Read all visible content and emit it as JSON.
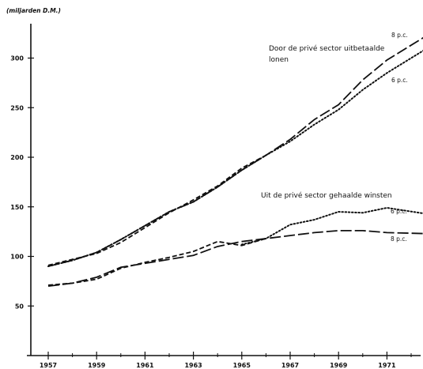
{
  "chart_data": {
    "type": "line",
    "unit_label": "(miljarden D.M.)",
    "x_ticks": [
      1957,
      1959,
      1961,
      1963,
      1965,
      1967,
      1969,
      1971
    ],
    "y_ticks": [
      50,
      100,
      150,
      200,
      250,
      300
    ],
    "xlim": [
      1957,
      1972.6
    ],
    "ylim": [
      0,
      335
    ],
    "grid": false,
    "annotations": [
      {
        "id": "wages_title_1",
        "text": "Door de privé sector uitbetaalde"
      },
      {
        "id": "wages_title_2",
        "text": "lonen"
      },
      {
        "id": "wages_8",
        "text": "8 p.c."
      },
      {
        "id": "wages_6",
        "text": "6 p.c."
      },
      {
        "id": "profits_title",
        "text": "Uit de privé sector gehaalde winsten"
      },
      {
        "id": "profits_6",
        "text": "6 p.c."
      },
      {
        "id": "profits_8",
        "text": "8 p.c."
      }
    ],
    "series": [
      {
        "group": "wages",
        "rate": "8 p.c.",
        "style": "longdash",
        "color": "#111111",
        "points": [
          [
            1957,
            90
          ],
          [
            1958,
            96
          ],
          [
            1959,
            104
          ],
          [
            1960,
            117
          ],
          [
            1961,
            131
          ],
          [
            1962,
            145
          ],
          [
            1963,
            155
          ],
          [
            1964,
            170
          ],
          [
            1965,
            187
          ],
          [
            1966,
            202
          ],
          [
            1967,
            218
          ],
          [
            1968,
            238
          ],
          [
            1969,
            253
          ],
          [
            1970,
            278
          ],
          [
            1971,
            298
          ],
          [
            1972.6,
            322
          ]
        ]
      },
      {
        "group": "wages",
        "rate": "6 p.c.",
        "style": "dotted",
        "color": "#111111",
        "points": [
          [
            1957,
            90
          ],
          [
            1958,
            96
          ],
          [
            1959,
            104
          ],
          [
            1960,
            117
          ],
          [
            1961,
            131
          ],
          [
            1962,
            145
          ],
          [
            1963,
            155
          ],
          [
            1964,
            170
          ],
          [
            1965,
            187
          ],
          [
            1966,
            202
          ],
          [
            1967,
            216
          ],
          [
            1968,
            233
          ],
          [
            1969,
            248
          ],
          [
            1970,
            268
          ],
          [
            1971,
            285
          ],
          [
            1972.6,
            309
          ]
        ]
      },
      {
        "group": "wages",
        "rate": "",
        "style": "shortdash",
        "color": "#111111",
        "points": [
          [
            1957,
            91
          ],
          [
            1958,
            97
          ],
          [
            1959,
            103
          ],
          [
            1960,
            114
          ],
          [
            1961,
            129
          ],
          [
            1962,
            144
          ],
          [
            1963,
            157
          ],
          [
            1964,
            171
          ],
          [
            1965,
            189
          ],
          [
            1966,
            202
          ]
        ]
      },
      {
        "group": "profits",
        "rate": "8 p.c.",
        "style": "longdash",
        "color": "#111111",
        "points": [
          [
            1957,
            70
          ],
          [
            1958,
            73
          ],
          [
            1959,
            79
          ],
          [
            1960,
            89
          ],
          [
            1961,
            93
          ],
          [
            1962,
            97
          ],
          [
            1963,
            101
          ],
          [
            1964,
            110
          ],
          [
            1965,
            115
          ],
          [
            1966,
            118
          ],
          [
            1967,
            121
          ],
          [
            1968,
            124
          ],
          [
            1969,
            126
          ],
          [
            1970,
            126
          ],
          [
            1971,
            124
          ],
          [
            1972.6,
            123
          ]
        ]
      },
      {
        "group": "profits",
        "rate": "6 p.c.",
        "style": "dotted",
        "color": "#111111",
        "points": [
          [
            1965,
            112
          ],
          [
            1966,
            118
          ],
          [
            1967,
            132
          ],
          [
            1968,
            137
          ],
          [
            1969,
            145
          ],
          [
            1970,
            144
          ],
          [
            1971,
            149
          ],
          [
            1972.6,
            143
          ]
        ]
      },
      {
        "group": "profits",
        "rate": "",
        "style": "shortdash",
        "color": "#111111",
        "points": [
          [
            1957,
            71
          ],
          [
            1958,
            73
          ],
          [
            1959,
            77
          ],
          [
            1960,
            88
          ],
          [
            1961,
            94
          ],
          [
            1962,
            99
          ],
          [
            1963,
            105
          ],
          [
            1964,
            115
          ],
          [
            1965,
            111
          ],
          [
            1966,
            118
          ]
        ]
      }
    ]
  }
}
